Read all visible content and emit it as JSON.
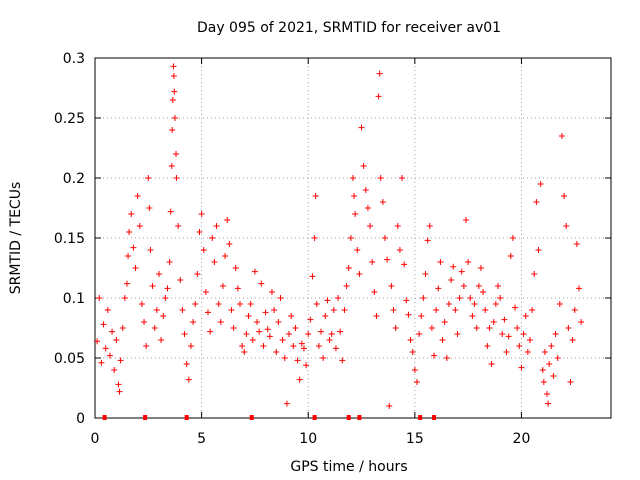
{
  "chart_data": {
    "type": "scatter",
    "title": "Day 095 of 2021, SRMTID for receiver av01",
    "xlabel": "GPS time / hours",
    "ylabel": "SRMTID / TECUs",
    "xlim": [
      0,
      24.2
    ],
    "ylim": [
      0,
      0.3
    ],
    "x_ticks": [
      0,
      5,
      10,
      15,
      20
    ],
    "x_tick_labels": [
      "0",
      "5",
      "10",
      "15",
      "20"
    ],
    "y_ticks": [
      0,
      0.05,
      0.1,
      0.15,
      0.2,
      0.25,
      0.3
    ],
    "y_tick_labels": [
      "0",
      "0.05",
      "0.1",
      "0.15",
      "0.2",
      "0.25",
      "0.3"
    ],
    "grid": true,
    "marker": "plus",
    "color": "#ff0000",
    "series": [
      {
        "name": "SRMTID",
        "points": [
          [
            0.1,
            0.064
          ],
          [
            0.2,
            0.1
          ],
          [
            0.3,
            0.046
          ],
          [
            0.4,
            0.078
          ],
          [
            0.5,
            0.058
          ],
          [
            0.6,
            0.09
          ],
          [
            0.7,
            0.052
          ],
          [
            0.8,
            0.072
          ],
          [
            0.9,
            0.04
          ],
          [
            1.0,
            0.065
          ],
          [
            1.1,
            0.028
          ],
          [
            1.15,
            0.022
          ],
          [
            1.2,
            0.048
          ],
          [
            1.3,
            0.075
          ],
          [
            1.4,
            0.1
          ],
          [
            1.5,
            0.112
          ],
          [
            1.55,
            0.135
          ],
          [
            1.6,
            0.155
          ],
          [
            1.7,
            0.17
          ],
          [
            1.8,
            0.142
          ],
          [
            1.9,
            0.125
          ],
          [
            2.0,
            0.185
          ],
          [
            2.1,
            0.16
          ],
          [
            2.2,
            0.095
          ],
          [
            2.3,
            0.08
          ],
          [
            2.4,
            0.06
          ],
          [
            2.5,
            0.2
          ],
          [
            2.55,
            0.175
          ],
          [
            2.6,
            0.14
          ],
          [
            2.7,
            0.11
          ],
          [
            2.8,
            0.075
          ],
          [
            2.9,
            0.09
          ],
          [
            3.0,
            0.12
          ],
          [
            3.1,
            0.065
          ],
          [
            3.2,
            0.085
          ],
          [
            3.3,
            0.1
          ],
          [
            3.4,
            0.108
          ],
          [
            3.5,
            0.13
          ],
          [
            3.55,
            0.172
          ],
          [
            3.6,
            0.21
          ],
          [
            3.62,
            0.24
          ],
          [
            3.65,
            0.265
          ],
          [
            3.68,
            0.293
          ],
          [
            3.7,
            0.285
          ],
          [
            3.72,
            0.272
          ],
          [
            3.75,
            0.25
          ],
          [
            3.8,
            0.22
          ],
          [
            3.82,
            0.2
          ],
          [
            3.9,
            0.16
          ],
          [
            4.0,
            0.115
          ],
          [
            4.1,
            0.09
          ],
          [
            4.2,
            0.07
          ],
          [
            4.3,
            0.045
          ],
          [
            4.4,
            0.032
          ],
          [
            4.5,
            0.06
          ],
          [
            4.6,
            0.08
          ],
          [
            4.7,
            0.095
          ],
          [
            4.8,
            0.12
          ],
          [
            4.9,
            0.155
          ],
          [
            5.0,
            0.17
          ],
          [
            5.1,
            0.14
          ],
          [
            5.2,
            0.105
          ],
          [
            5.3,
            0.088
          ],
          [
            5.4,
            0.072
          ],
          [
            5.5,
            0.15
          ],
          [
            5.6,
            0.13
          ],
          [
            5.7,
            0.16
          ],
          [
            5.8,
            0.095
          ],
          [
            5.9,
            0.08
          ],
          [
            6.0,
            0.11
          ],
          [
            6.1,
            0.135
          ],
          [
            6.2,
            0.165
          ],
          [
            6.3,
            0.145
          ],
          [
            6.4,
            0.09
          ],
          [
            6.5,
            0.075
          ],
          [
            6.6,
            0.125
          ],
          [
            6.7,
            0.108
          ],
          [
            6.8,
            0.095
          ],
          [
            6.9,
            0.06
          ],
          [
            7.0,
            0.055
          ],
          [
            7.1,
            0.07
          ],
          [
            7.2,
            0.085
          ],
          [
            7.3,
            0.095
          ],
          [
            7.4,
            0.065
          ],
          [
            7.5,
            0.122
          ],
          [
            7.6,
            0.08
          ],
          [
            7.7,
            0.072
          ],
          [
            7.8,
            0.112
          ],
          [
            7.9,
            0.06
          ],
          [
            8.0,
            0.088
          ],
          [
            8.1,
            0.074
          ],
          [
            8.2,
            0.068
          ],
          [
            8.3,
            0.105
          ],
          [
            8.4,
            0.09
          ],
          [
            8.5,
            0.055
          ],
          [
            8.6,
            0.08
          ],
          [
            8.7,
            0.1
          ],
          [
            8.8,
            0.065
          ],
          [
            8.9,
            0.05
          ],
          [
            9.0,
            0.012
          ],
          [
            9.1,
            0.07
          ],
          [
            9.2,
            0.085
          ],
          [
            9.3,
            0.06
          ],
          [
            9.4,
            0.075
          ],
          [
            9.5,
            0.048
          ],
          [
            9.6,
            0.032
          ],
          [
            9.7,
            0.062
          ],
          [
            9.8,
            0.058
          ],
          [
            9.9,
            0.044
          ],
          [
            10.0,
            0.07
          ],
          [
            10.1,
            0.082
          ],
          [
            10.2,
            0.118
          ],
          [
            10.3,
            0.15
          ],
          [
            10.35,
            0.185
          ],
          [
            10.4,
            0.095
          ],
          [
            10.5,
            0.06
          ],
          [
            10.6,
            0.072
          ],
          [
            10.7,
            0.05
          ],
          [
            10.8,
            0.085
          ],
          [
            10.9,
            0.098
          ],
          [
            11.0,
            0.065
          ],
          [
            11.1,
            0.07
          ],
          [
            11.2,
            0.09
          ],
          [
            11.3,
            0.058
          ],
          [
            11.4,
            0.1
          ],
          [
            11.5,
            0.072
          ],
          [
            11.6,
            0.048
          ],
          [
            11.7,
            0.09
          ],
          [
            11.8,
            0.11
          ],
          [
            11.9,
            0.125
          ],
          [
            12.0,
            0.15
          ],
          [
            12.1,
            0.2
          ],
          [
            12.15,
            0.185
          ],
          [
            12.2,
            0.17
          ],
          [
            12.3,
            0.14
          ],
          [
            12.4,
            0.12
          ],
          [
            12.5,
            0.242
          ],
          [
            12.6,
            0.21
          ],
          [
            12.7,
            0.19
          ],
          [
            12.8,
            0.175
          ],
          [
            12.9,
            0.16
          ],
          [
            13.0,
            0.13
          ],
          [
            13.1,
            0.105
          ],
          [
            13.2,
            0.085
          ],
          [
            13.3,
            0.268
          ],
          [
            13.35,
            0.287
          ],
          [
            13.4,
            0.2
          ],
          [
            13.5,
            0.18
          ],
          [
            13.6,
            0.15
          ],
          [
            13.7,
            0.132
          ],
          [
            13.8,
            0.01
          ],
          [
            13.9,
            0.11
          ],
          [
            14.0,
            0.09
          ],
          [
            14.1,
            0.075
          ],
          [
            14.2,
            0.16
          ],
          [
            14.3,
            0.14
          ],
          [
            14.4,
            0.2
          ],
          [
            14.5,
            0.128
          ],
          [
            14.6,
            0.098
          ],
          [
            14.7,
            0.086
          ],
          [
            14.8,
            0.065
          ],
          [
            14.9,
            0.055
          ],
          [
            15.0,
            0.04
          ],
          [
            15.1,
            0.03
          ],
          [
            15.2,
            0.07
          ],
          [
            15.3,
            0.085
          ],
          [
            15.4,
            0.1
          ],
          [
            15.5,
            0.12
          ],
          [
            15.6,
            0.148
          ],
          [
            15.7,
            0.16
          ],
          [
            15.8,
            0.075
          ],
          [
            15.9,
            0.052
          ],
          [
            16.0,
            0.09
          ],
          [
            16.1,
            0.108
          ],
          [
            16.2,
            0.13
          ],
          [
            16.3,
            0.065
          ],
          [
            16.4,
            0.08
          ],
          [
            16.5,
            0.05
          ],
          [
            16.6,
            0.095
          ],
          [
            16.7,
            0.115
          ],
          [
            16.8,
            0.126
          ],
          [
            16.9,
            0.09
          ],
          [
            17.0,
            0.07
          ],
          [
            17.1,
            0.1
          ],
          [
            17.2,
            0.122
          ],
          [
            17.3,
            0.11
          ],
          [
            17.4,
            0.165
          ],
          [
            17.5,
            0.13
          ],
          [
            17.6,
            0.1
          ],
          [
            17.7,
            0.085
          ],
          [
            17.8,
            0.095
          ],
          [
            17.9,
            0.075
          ],
          [
            18.0,
            0.11
          ],
          [
            18.1,
            0.125
          ],
          [
            18.2,
            0.105
          ],
          [
            18.3,
            0.09
          ],
          [
            18.4,
            0.06
          ],
          [
            18.5,
            0.075
          ],
          [
            18.6,
            0.045
          ],
          [
            18.7,
            0.08
          ],
          [
            18.8,
            0.095
          ],
          [
            18.9,
            0.11
          ],
          [
            19.0,
            0.1
          ],
          [
            19.1,
            0.07
          ],
          [
            19.2,
            0.082
          ],
          [
            19.3,
            0.055
          ],
          [
            19.4,
            0.068
          ],
          [
            19.5,
            0.135
          ],
          [
            19.6,
            0.15
          ],
          [
            19.7,
            0.092
          ],
          [
            19.8,
            0.075
          ],
          [
            19.9,
            0.06
          ],
          [
            20.0,
            0.042
          ],
          [
            20.1,
            0.07
          ],
          [
            20.2,
            0.085
          ],
          [
            20.3,
            0.055
          ],
          [
            20.4,
            0.065
          ],
          [
            20.5,
            0.09
          ],
          [
            20.6,
            0.12
          ],
          [
            20.7,
            0.18
          ],
          [
            20.8,
            0.14
          ],
          [
            20.9,
            0.195
          ],
          [
            21.0,
            0.04
          ],
          [
            21.05,
            0.03
          ],
          [
            21.1,
            0.055
          ],
          [
            21.2,
            0.02
          ],
          [
            21.25,
            0.012
          ],
          [
            21.3,
            0.045
          ],
          [
            21.4,
            0.06
          ],
          [
            21.5,
            0.035
          ],
          [
            21.6,
            0.07
          ],
          [
            21.7,
            0.05
          ],
          [
            21.8,
            0.095
          ],
          [
            21.9,
            0.235
          ],
          [
            22.0,
            0.185
          ],
          [
            22.1,
            0.16
          ],
          [
            22.2,
            0.075
          ],
          [
            22.3,
            0.03
          ],
          [
            22.4,
            0.065
          ],
          [
            22.5,
            0.09
          ],
          [
            22.6,
            0.145
          ],
          [
            22.7,
            0.108
          ],
          [
            22.8,
            0.08
          ]
        ]
      }
    ],
    "zero_markers_x": [
      0.45,
      2.35,
      4.3,
      7.35,
      10.3,
      11.9,
      12.4,
      15.25,
      15.9
    ]
  }
}
